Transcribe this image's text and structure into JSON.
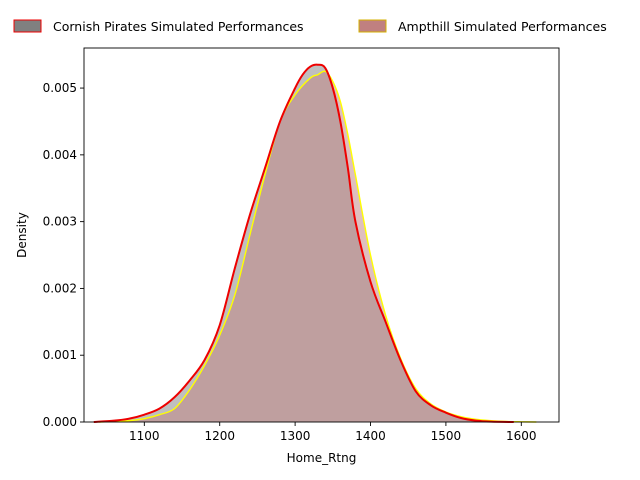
{
  "chart_data": {
    "type": "area",
    "title": "",
    "xlabel": "Home_Rtng",
    "ylabel": "Density",
    "xlim": [
      1020,
      1650
    ],
    "ylim": [
      0,
      0.0056
    ],
    "xticks": [
      1100,
      1200,
      1300,
      1400,
      1500,
      1600
    ],
    "xtick_labels": [
      "1100",
      "1200",
      "1300",
      "1400",
      "1500",
      "1600"
    ],
    "yticks": [
      0,
      0.001,
      0.002,
      0.003,
      0.004,
      0.005
    ],
    "ytick_labels": [
      "0.000",
      "0.001",
      "0.002",
      "0.003",
      "0.004",
      "0.005"
    ],
    "grid": false,
    "legend_position": "top",
    "series": [
      {
        "name": "Cornish Pirates Simulated Performances",
        "fill_color": "#808080",
        "line_color": "#ee0000",
        "x": [
          1033,
          1060,
          1080,
          1100,
          1120,
          1140,
          1160,
          1180,
          1200,
          1220,
          1240,
          1260,
          1280,
          1300,
          1310,
          1320,
          1330,
          1340,
          1350,
          1360,
          1370,
          1380,
          1400,
          1420,
          1440,
          1460,
          1480,
          1500,
          1520,
          1540,
          1560,
          1590
        ],
        "y": [
          0,
          2e-05,
          5e-05,
          0.00011,
          0.0002,
          0.00037,
          0.00062,
          0.00093,
          0.00145,
          0.0023,
          0.0031,
          0.0038,
          0.0045,
          0.005,
          0.0052,
          0.00532,
          0.00535,
          0.0053,
          0.005,
          0.0045,
          0.0038,
          0.003,
          0.0021,
          0.0015,
          0.00092,
          0.00046,
          0.00025,
          0.00014,
          6e-05,
          2e-05,
          5e-06,
          0
        ]
      },
      {
        "name": "Ampthill Simulated Performances",
        "fill_color": "#c08080",
        "line_color": "#ffff00",
        "x": [
          1040,
          1080,
          1100,
          1120,
          1140,
          1160,
          1180,
          1200,
          1220,
          1240,
          1260,
          1280,
          1300,
          1320,
          1330,
          1340,
          1350,
          1360,
          1370,
          1380,
          1400,
          1420,
          1440,
          1460,
          1480,
          1500,
          1520,
          1540,
          1560,
          1580,
          1600,
          1620
        ],
        "y": [
          0,
          2e-05,
          5e-05,
          0.00011,
          0.0002,
          0.00048,
          0.00085,
          0.0013,
          0.0019,
          0.0028,
          0.0037,
          0.0045,
          0.0049,
          0.00515,
          0.0052,
          0.00525,
          0.0051,
          0.0048,
          0.0043,
          0.0037,
          0.0025,
          0.0016,
          0.00095,
          0.0005,
          0.00027,
          0.00015,
          8e-05,
          4e-05,
          2e-05,
          8e-06,
          3e-06,
          0
        ]
      }
    ]
  }
}
